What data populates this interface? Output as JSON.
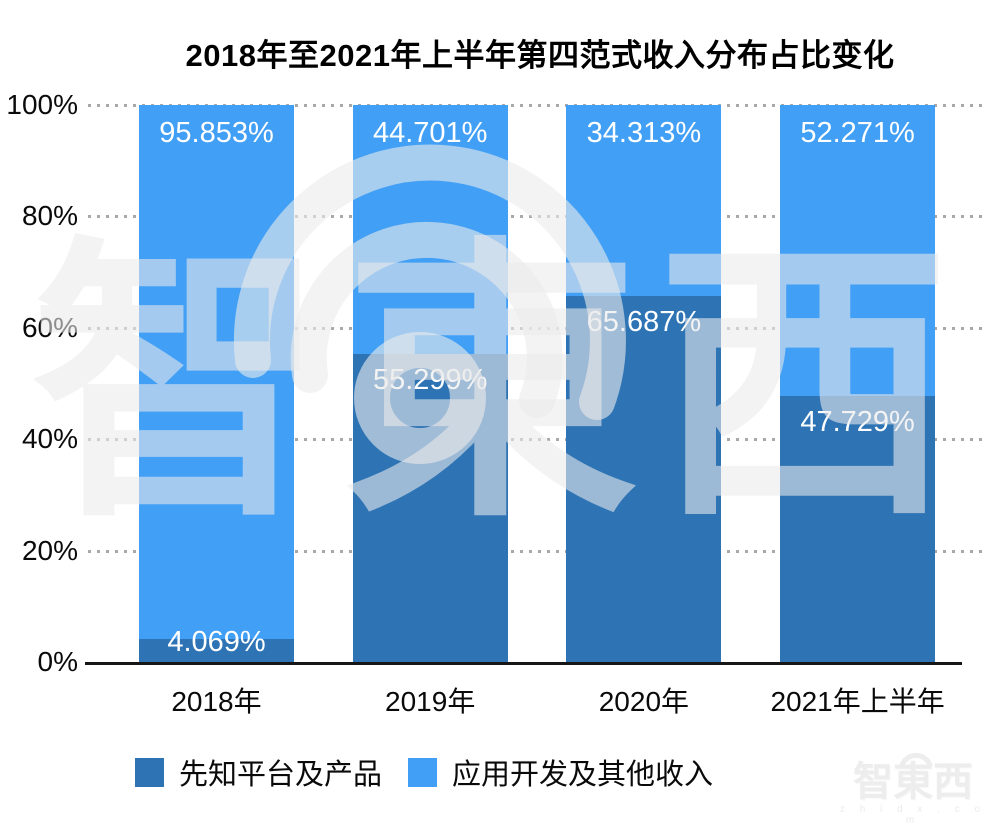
{
  "chart_data": {
    "type": "bar",
    "stacked": true,
    "title": "2018年至2021年上半年第四范式收入分布占比变化",
    "categories": [
      "2018年",
      "2019年",
      "2020年",
      "2021年上半年"
    ],
    "series": [
      {
        "name": "先知平台及产品",
        "color": "#2e74b5",
        "values": [
          4.069,
          55.299,
          65.687,
          47.729
        ]
      },
      {
        "name": "应用开发及其他收入",
        "color": "#419ff5",
        "values": [
          95.853,
          44.701,
          34.313,
          52.271
        ]
      }
    ],
    "bars": [
      {
        "category": "2018年",
        "dark": 4.069,
        "light": 95.853,
        "dark_label": "4.069%",
        "light_label": "95.853%"
      },
      {
        "category": "2019年",
        "dark": 55.299,
        "light": 44.701,
        "dark_label": "55.299%",
        "light_label": "44.701%"
      },
      {
        "category": "2020年",
        "dark": 65.687,
        "light": 34.313,
        "dark_label": "65.687%",
        "light_label": "34.313%"
      },
      {
        "category": "2021年上半年",
        "dark": 47.729,
        "light": 52.271,
        "dark_label": "47.729%",
        "light_label": "52.271%"
      }
    ],
    "yticks": [
      {
        "label": "100%",
        "value": 100
      },
      {
        "label": "80%",
        "value": 80
      },
      {
        "label": "60%",
        "value": 60
      },
      {
        "label": "40%",
        "value": 40
      },
      {
        "label": "20%",
        "value": 20
      },
      {
        "label": "0%",
        "value": 0
      }
    ],
    "ylim": [
      0,
      100
    ],
    "grid": "dotted-horizontal",
    "legend_position": "bottom-left",
    "label_color": "#ffffff",
    "axis_color": "#161616"
  },
  "watermark": {
    "logo_text": "智東西",
    "site_text": "z h i d x . c o m"
  }
}
